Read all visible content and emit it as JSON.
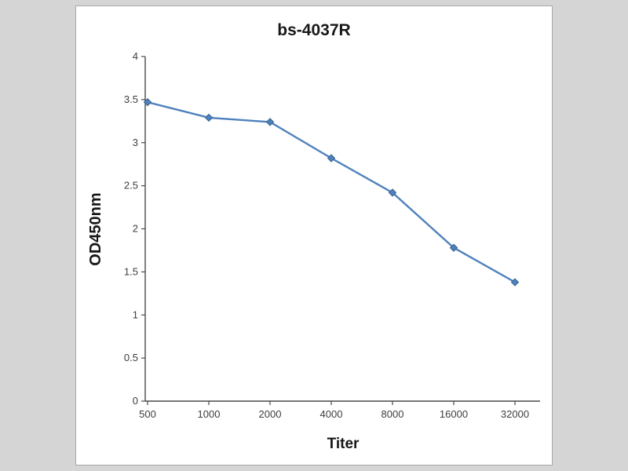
{
  "page": {
    "background_color": "#d5d5d5",
    "panel_background": "#ffffff",
    "panel_border": "#a8a8a8"
  },
  "chart_data": {
    "type": "line",
    "title": "bs-4037R",
    "xlabel": "Titer",
    "ylabel": "OD450nm",
    "categories": [
      "500",
      "1000",
      "2000",
      "4000",
      "8000",
      "16000",
      "32000"
    ],
    "series": [
      {
        "name": "bs-4037R",
        "values": [
          3.47,
          3.29,
          3.24,
          2.82,
          2.42,
          1.78,
          1.38
        ],
        "color": "#4f81bd",
        "marker": "diamond",
        "marker_edge_color": "#38618f"
      }
    ],
    "ylim": [
      0,
      4
    ],
    "yticks": [
      "4",
      "3.5",
      "3",
      "2.5",
      "2",
      "1.5",
      "1",
      "0.5",
      "0"
    ],
    "grid": false,
    "legend": "none",
    "axis_color": "#4a4a4a",
    "tick_label_color": "#3d3d3d"
  }
}
